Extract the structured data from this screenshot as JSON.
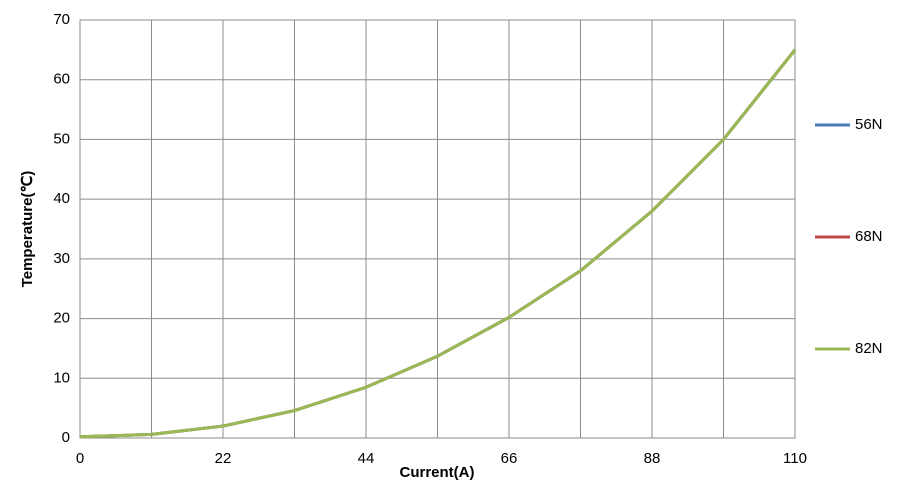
{
  "chart_data": {
    "type": "line",
    "xlabel": "Current(A)",
    "ylabel": "Temperature(℃)",
    "x": [
      0,
      11,
      22,
      33,
      44,
      55,
      66,
      77,
      88,
      99,
      110
    ],
    "series": [
      {
        "name": "56N",
        "color": "#4a7ebb",
        "values": [
          0.2,
          0.6,
          2,
          4.6,
          8.5,
          13.7,
          20.2,
          28,
          38,
          50,
          65
        ]
      },
      {
        "name": "68N",
        "color": "#be4b48",
        "values": [
          0.2,
          0.6,
          2,
          4.6,
          8.5,
          13.7,
          20.2,
          28,
          38,
          50,
          65
        ]
      },
      {
        "name": "82N",
        "color": "#98b954",
        "values": [
          0.2,
          0.6,
          2,
          4.6,
          8.5,
          13.7,
          20.2,
          28,
          38,
          50,
          65
        ]
      }
    ],
    "xlim": [
      0,
      110
    ],
    "xticks": [
      0,
      22,
      44,
      66,
      88,
      110
    ],
    "x_gridlines": [
      0,
      11,
      22,
      33,
      44,
      55,
      66,
      77,
      88,
      99,
      110
    ],
    "ylim": [
      0,
      70
    ],
    "yticks": [
      0,
      10,
      20,
      30,
      40,
      50,
      60,
      70
    ],
    "grid": true,
    "legend": "right"
  }
}
